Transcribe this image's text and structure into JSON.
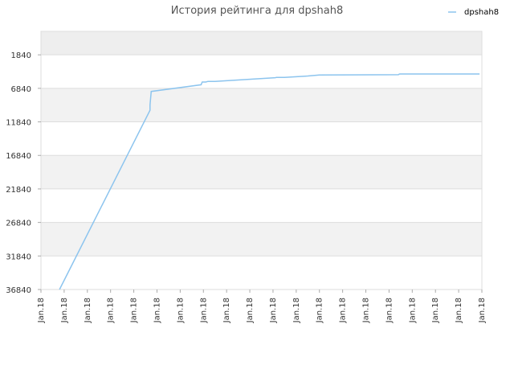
{
  "chart_data": {
    "type": "line",
    "title": "История рейтинга для dpshah8",
    "xlabel": "",
    "ylabel": "",
    "y_axis_inverted": true,
    "ylim": [
      36840,
      -1660
    ],
    "yticks": [
      1840,
      6840,
      11840,
      16840,
      21840,
      26840,
      31840,
      36840
    ],
    "x_tick_labels": [
      "Jan.18",
      "Jan.18",
      "Jan.18",
      "Jan.18",
      "Jan.18",
      "Jan.18",
      "Jan.18",
      "Jan.18",
      "Jan.18",
      "Jan.18",
      "Jan.18",
      "Jan.18",
      "Jan.18",
      "Jan.18",
      "Jan.18",
      "Jan.18",
      "Jan.18",
      "Jan.18",
      "Jan.18",
      "Jan.18"
    ],
    "grid": true,
    "band_colors": [
      "#eeeeee",
      "#ffffff",
      "#f2f2f2"
    ],
    "legend_position": "top-right",
    "series": [
      {
        "name": "dpshah8",
        "color": "#8cc4ee",
        "x": [
          0.8,
          4.7,
          4.7,
          4.75,
          6.9,
          6.95,
          7.1,
          7.2,
          7.5,
          10.1,
          10.15,
          10.5,
          11.5,
          12.0,
          15.4,
          15.45,
          16.5,
          18.9
        ],
        "values": [
          36840,
          10100,
          9300,
          7300,
          6300,
          5900,
          5900,
          5800,
          5800,
          5250,
          5200,
          5200,
          5000,
          4850,
          4800,
          4700,
          4700,
          4700
        ]
      }
    ]
  }
}
